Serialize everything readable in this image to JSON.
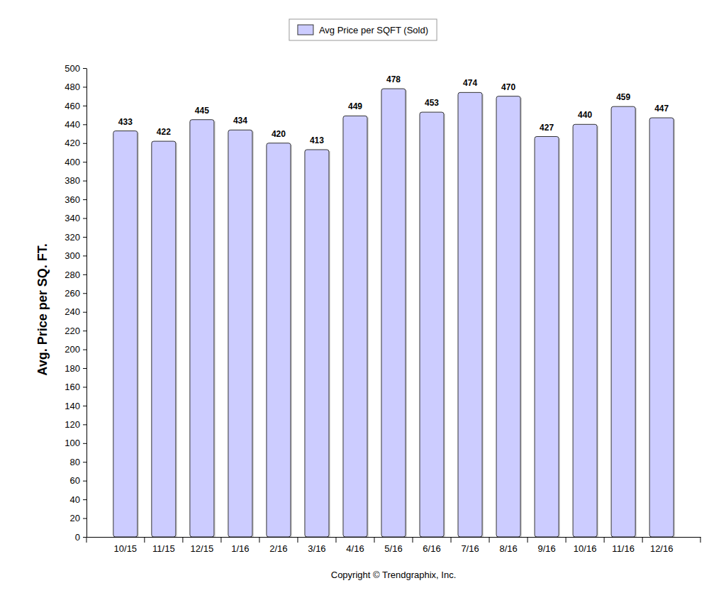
{
  "chart_data": {
    "type": "bar",
    "y_label": "Avg. Price per SQ. FT.",
    "categories": [
      "10/15",
      "11/15",
      "12/15",
      "1/16",
      "2/16",
      "3/16",
      "4/16",
      "5/16",
      "6/16",
      "7/16",
      "8/16",
      "9/16",
      "10/16",
      "11/16",
      "12/16"
    ],
    "series": [
      {
        "name": "Avg Price per SQFT (Sold)",
        "color": "#ccccff",
        "values": [
          433,
          422,
          445,
          434,
          420,
          413,
          449,
          478,
          453,
          474,
          470,
          427,
          440,
          459,
          447
        ]
      }
    ],
    "ylim": [
      0,
      500
    ],
    "yticks": [
      0,
      20,
      40,
      60,
      80,
      100,
      120,
      140,
      160,
      180,
      200,
      220,
      240,
      260,
      280,
      300,
      320,
      340,
      360,
      380,
      400,
      420,
      440,
      460,
      480,
      500
    ],
    "grid": false,
    "legend": "top",
    "data_labels": true,
    "annotations": [
      "Copyright © Trendgraphix, Inc."
    ]
  }
}
